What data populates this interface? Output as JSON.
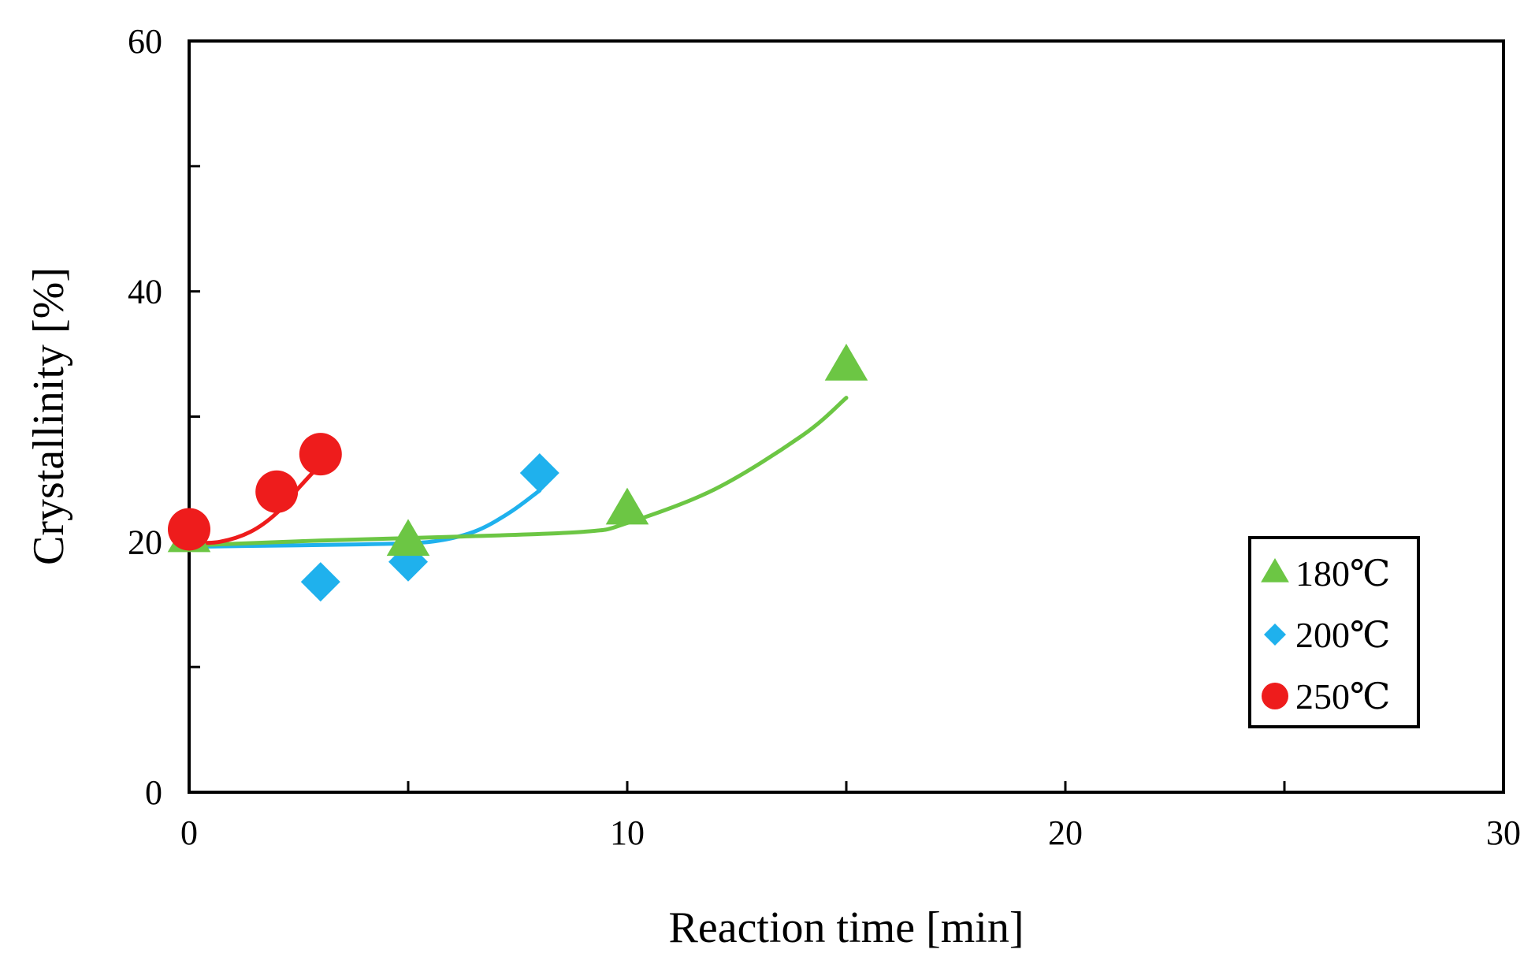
{
  "chart_data": {
    "type": "scatter",
    "title": "",
    "xlabel": "Reaction time [min]",
    "ylabel": "Crystallinity [%]",
    "xlim": [
      0,
      30
    ],
    "ylim": [
      0,
      60
    ],
    "x_major_ticks": [
      0,
      10,
      20,
      30
    ],
    "x_minor_ticks": [
      5,
      15,
      25
    ],
    "y_major_ticks": [
      0,
      20,
      40,
      60
    ],
    "y_minor_ticks": [
      10,
      30,
      50
    ],
    "x_tick_labels": [
      "0",
      "10",
      "20",
      "30"
    ],
    "y_tick_labels": [
      "0",
      "20",
      "40",
      "60"
    ],
    "grid": false,
    "legend_position": "right",
    "series": [
      {
        "name": "180℃",
        "marker": "triangle",
        "color": "#6cc644",
        "points": [
          {
            "x": 0,
            "y": 20.3
          },
          {
            "x": 5,
            "y": 20.0
          },
          {
            "x": 10,
            "y": 22.5
          },
          {
            "x": 15,
            "y": 34.0
          }
        ],
        "fit_curve": [
          {
            "x": 0,
            "y": 19.7
          },
          {
            "x": 3,
            "y": 20.1
          },
          {
            "x": 6,
            "y": 20.4
          },
          {
            "x": 9,
            "y": 20.8
          },
          {
            "x": 10,
            "y": 21.5
          },
          {
            "x": 12,
            "y": 24.2
          },
          {
            "x": 14,
            "y": 28.5
          },
          {
            "x": 15,
            "y": 31.5
          }
        ]
      },
      {
        "name": "200℃",
        "marker": "diamond",
        "color": "#1fb1ed",
        "points": [
          {
            "x": 3,
            "y": 16.8
          },
          {
            "x": 5,
            "y": 18.4
          },
          {
            "x": 8,
            "y": 25.5
          }
        ],
        "fit_curve": [
          {
            "x": 0,
            "y": 19.6
          },
          {
            "x": 2,
            "y": 19.7
          },
          {
            "x": 4,
            "y": 19.8
          },
          {
            "x": 5.5,
            "y": 20.0
          },
          {
            "x": 6.5,
            "y": 20.8
          },
          {
            "x": 7.3,
            "y": 22.3
          },
          {
            "x": 8,
            "y": 24.1
          }
        ]
      },
      {
        "name": "250℃",
        "marker": "circle",
        "color": "#ee1c1c",
        "points": [
          {
            "x": 0,
            "y": 21.0
          },
          {
            "x": 2,
            "y": 24.0
          },
          {
            "x": 3,
            "y": 27.0
          }
        ],
        "fit_curve": [
          {
            "x": 0,
            "y": 19.9
          },
          {
            "x": 0.7,
            "y": 20.0
          },
          {
            "x": 1.4,
            "y": 20.8
          },
          {
            "x": 2.0,
            "y": 22.3
          },
          {
            "x": 2.5,
            "y": 24.3
          },
          {
            "x": 3.0,
            "y": 26.2
          }
        ]
      }
    ]
  }
}
